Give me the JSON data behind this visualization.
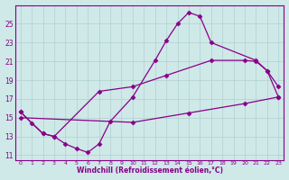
{
  "xlabel": "Windchill (Refroidissement éolien,°C)",
  "bg_color": "#cfe8e8",
  "line_color": "#880088",
  "xlim": [
    -0.5,
    23.5
  ],
  "ylim": [
    10.5,
    27.0
  ],
  "xticks": [
    0,
    1,
    2,
    3,
    4,
    5,
    6,
    7,
    8,
    9,
    10,
    11,
    12,
    13,
    14,
    15,
    16,
    17,
    18,
    19,
    20,
    21,
    22,
    23
  ],
  "yticks": [
    11,
    13,
    15,
    17,
    19,
    21,
    23,
    25
  ],
  "grid_color": "#b0d0d0",
  "line1_x": [
    0,
    1,
    2,
    3,
    4,
    5,
    6,
    7,
    8,
    10,
    12,
    13,
    14,
    15,
    16,
    17,
    21,
    22,
    23
  ],
  "line1_y": [
    15.6,
    14.4,
    13.3,
    13.0,
    12.2,
    11.7,
    11.3,
    12.2,
    14.6,
    17.2,
    21.1,
    23.2,
    25.0,
    26.2,
    25.8,
    23.0,
    21.1,
    20.0,
    18.3
  ],
  "line2_x": [
    0,
    2,
    3,
    7,
    10,
    13,
    17,
    20,
    21,
    22,
    23
  ],
  "line2_y": [
    15.6,
    13.3,
    13.0,
    17.8,
    18.3,
    19.5,
    21.1,
    21.1,
    21.0,
    20.0,
    17.2
  ],
  "line3_x": [
    0,
    10,
    15,
    20,
    23
  ],
  "line3_y": [
    15.0,
    14.5,
    15.5,
    16.5,
    17.2
  ]
}
